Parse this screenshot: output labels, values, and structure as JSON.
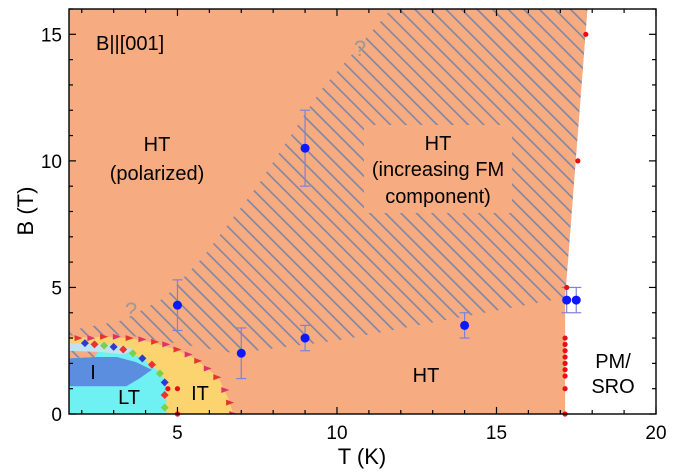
{
  "chart_data": {
    "type": "scatter",
    "title": "",
    "xlabel": "T (K)",
    "ylabel": "B (T)",
    "xlim": [
      1.6,
      20
    ],
    "ylim": [
      0,
      16
    ],
    "xticks": [
      5,
      10,
      15,
      20
    ],
    "yticks": [
      0,
      5,
      10,
      15
    ],
    "grid": false,
    "colors": {
      "HT": "#f6ab80",
      "hatch": "#7f86a6",
      "IT": "#fbd470",
      "LT": "#6ff0f2",
      "I": "#5c8ee0",
      "PM": "#ffffff",
      "blue_points": "#0b17ff",
      "red_points": "#e81010",
      "errorbar": "#7e82d6"
    },
    "annotations": {
      "field_dir": "B||[001]",
      "ht_polarized_line1": "HT",
      "ht_polarized_line2": "(polarized)",
      "ht_fm_line1": "HT",
      "ht_fm_line2": "(increasing FM",
      "ht_fm_line3": "component)",
      "ht_low": "HT",
      "pm_line1": "PM/",
      "pm_line2": "SRO",
      "it": "IT",
      "lt": "LT",
      "i": "I",
      "q1": "?",
      "q2": "?"
    },
    "blue_points": [
      {
        "x": 5.0,
        "y": 4.3,
        "err": 1.0
      },
      {
        "x": 7.0,
        "y": 2.4,
        "err": 1.0
      },
      {
        "x": 9.0,
        "y": 10.5,
        "err": 1.5
      },
      {
        "x": 9.0,
        "y": 3.0,
        "err": 0.5
      },
      {
        "x": 14.0,
        "y": 3.5,
        "err": 0.5
      },
      {
        "x": 17.2,
        "y": 4.5,
        "err": 0.5
      },
      {
        "x": 17.5,
        "y": 4.5,
        "err": 0.5
      }
    ],
    "red_points": [
      {
        "x": 17.8,
        "y": 15.0
      },
      {
        "x": 17.55,
        "y": 10.0
      },
      {
        "x": 17.2,
        "y": 5.0
      },
      {
        "x": 17.15,
        "y": 3.0
      },
      {
        "x": 17.15,
        "y": 2.75
      },
      {
        "x": 17.15,
        "y": 2.5
      },
      {
        "x": 17.15,
        "y": 2.25
      },
      {
        "x": 17.15,
        "y": 2.0
      },
      {
        "x": 17.15,
        "y": 1.75
      },
      {
        "x": 17.15,
        "y": 1.5
      },
      {
        "x": 17.15,
        "y": 1.0
      },
      {
        "x": 17.15,
        "y": 0.0
      },
      {
        "x": 4.7,
        "y": 1.0
      },
      {
        "x": 5.0,
        "y": 1.0
      },
      {
        "x": 5.0,
        "y": 0.0
      }
    ],
    "phase_boundary_points": [
      {
        "x": 6.75,
        "y": 0.0
      },
      {
        "x": 6.65,
        "y": 0.45
      },
      {
        "x": 6.5,
        "y": 0.95
      },
      {
        "x": 6.25,
        "y": 1.45
      },
      {
        "x": 5.95,
        "y": 1.8
      },
      {
        "x": 5.65,
        "y": 2.1
      },
      {
        "x": 5.35,
        "y": 2.35
      },
      {
        "x": 5.0,
        "y": 2.55
      },
      {
        "x": 4.65,
        "y": 2.75
      },
      {
        "x": 4.3,
        "y": 2.85
      },
      {
        "x": 3.9,
        "y": 2.95
      },
      {
        "x": 3.5,
        "y": 3.0
      },
      {
        "x": 3.1,
        "y": 3.05
      },
      {
        "x": 2.7,
        "y": 3.05
      },
      {
        "x": 2.3,
        "y": 3.0
      },
      {
        "x": 1.9,
        "y": 3.0
      }
    ],
    "inner_boundary_points": [
      {
        "x": 4.6,
        "y": 0.25
      },
      {
        "x": 4.6,
        "y": 0.75
      },
      {
        "x": 4.6,
        "y": 1.25
      },
      {
        "x": 4.45,
        "y": 1.6
      },
      {
        "x": 4.2,
        "y": 1.95
      },
      {
        "x": 3.9,
        "y": 2.2
      },
      {
        "x": 3.6,
        "y": 2.4
      },
      {
        "x": 3.3,
        "y": 2.55
      },
      {
        "x": 3.0,
        "y": 2.65
      },
      {
        "x": 2.7,
        "y": 2.7
      },
      {
        "x": 2.4,
        "y": 2.75
      },
      {
        "x": 2.1,
        "y": 2.8
      }
    ]
  }
}
